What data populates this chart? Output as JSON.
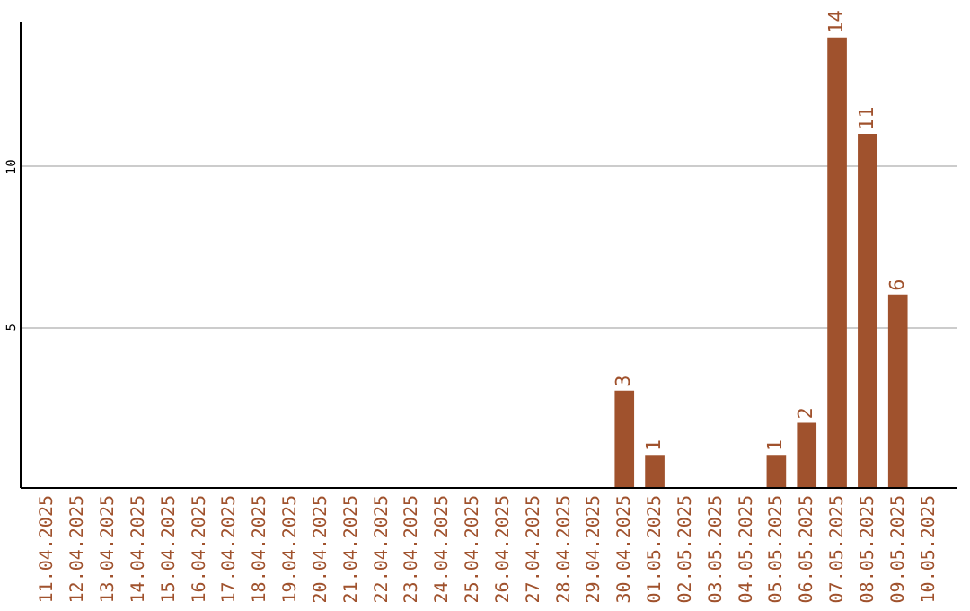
{
  "chart_data": {
    "type": "bar",
    "categories": [
      "11.04.2025",
      "12.04.2025",
      "13.04.2025",
      "14.04.2025",
      "15.04.2025",
      "16.04.2025",
      "17.04.2025",
      "18.04.2025",
      "19.04.2025",
      "20.04.2025",
      "21.04.2025",
      "22.04.2025",
      "23.04.2025",
      "24.04.2025",
      "25.04.2025",
      "26.04.2025",
      "27.04.2025",
      "28.04.2025",
      "29.04.2025",
      "30.04.2025",
      "01.05.2025",
      "02.05.2025",
      "03.05.2025",
      "04.05.2025",
      "05.05.2025",
      "06.05.2025",
      "07.05.2025",
      "08.05.2025",
      "09.05.2025",
      "10.05.2025"
    ],
    "values": [
      0,
      0,
      0,
      0,
      0,
      0,
      0,
      0,
      0,
      0,
      0,
      0,
      0,
      0,
      0,
      0,
      0,
      0,
      0,
      3,
      1,
      0,
      0,
      0,
      1,
      2,
      14,
      11,
      6,
      0
    ],
    "value_labels": [
      null,
      null,
      null,
      null,
      null,
      null,
      null,
      null,
      null,
      null,
      null,
      null,
      null,
      null,
      null,
      null,
      null,
      null,
      null,
      "3",
      "1",
      null,
      null,
      null,
      "1",
      "2",
      "14",
      "11",
      "6",
      null
    ],
    "color": "#a0522d",
    "ylim": [
      0,
      14.5
    ],
    "yticks": [
      5,
      10
    ],
    "grid": "y"
  }
}
